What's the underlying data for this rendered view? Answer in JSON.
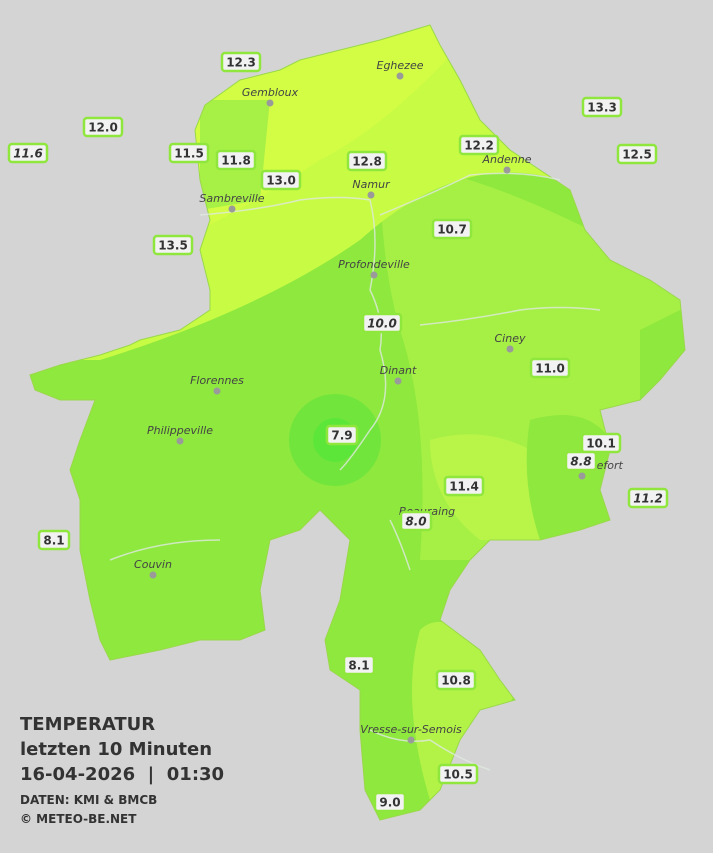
{
  "legend": {
    "title": "TEMPERATUR",
    "period": "letzten 10 Minuten",
    "datetime": "16-04-2026  |  01:30",
    "source": "DATEN: KMI & BMCB",
    "copyright": "© METEO-BE.NET"
  },
  "cities": [
    "Eghezee",
    "Gembloux",
    "Andenne",
    "Namur",
    "Sambreville",
    "Profondeville",
    "Ciney",
    "Dinant",
    "Florennes",
    "Philippeville",
    "Rochefort",
    "Beauraing",
    "Couvin",
    "Vresse-sur-Semois"
  ],
  "stations": [
    {
      "label": "12.3",
      "italic": false
    },
    {
      "label": "12.0",
      "italic": false
    },
    {
      "label": "11.6",
      "italic": true
    },
    {
      "label": "11.5",
      "italic": false
    },
    {
      "label": "11.8",
      "italic": false
    },
    {
      "label": "13.0",
      "italic": false
    },
    {
      "label": "12.8",
      "italic": false
    },
    {
      "label": "12.2",
      "italic": false
    },
    {
      "label": "13.3",
      "italic": false
    },
    {
      "label": "12.5",
      "italic": false
    },
    {
      "label": "13.5",
      "italic": false
    },
    {
      "label": "10.7",
      "italic": false
    },
    {
      "label": "10.0",
      "italic": true
    },
    {
      "label": "11.0",
      "italic": false
    },
    {
      "label": "7.9",
      "italic": false
    },
    {
      "label": "10.1",
      "italic": false
    },
    {
      "label": "8.8",
      "italic": true
    },
    {
      "label": "11.4",
      "italic": false
    },
    {
      "label": "11.2",
      "italic": true
    },
    {
      "label": "8.0",
      "italic": true
    },
    {
      "label": "8.1",
      "italic": false
    },
    {
      "label": "8.1",
      "italic": false
    },
    {
      "label": "10.8",
      "italic": false
    },
    {
      "label": "10.5",
      "italic": false
    },
    {
      "label": "9.0",
      "italic": false
    }
  ]
}
